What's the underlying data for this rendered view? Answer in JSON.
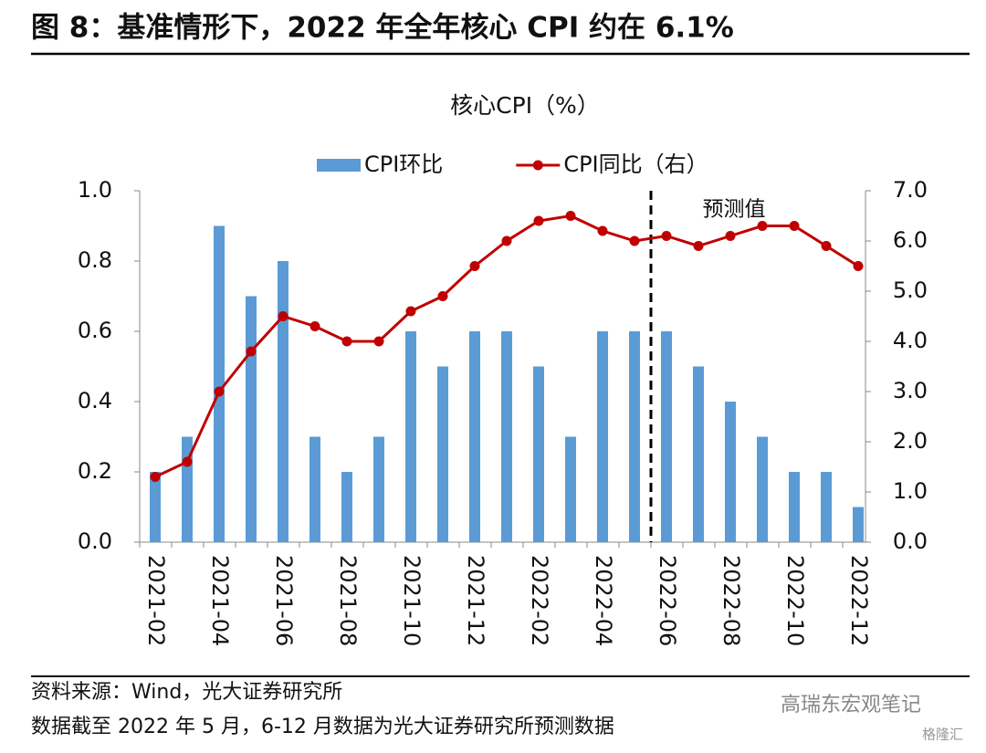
{
  "chart_data": {
    "type": "bar-line",
    "title": "图 8：基准情形下，2022 年全年核心 CPI 约在 6.1%",
    "subtitle": "核心CPI（%）",
    "annotation": "预测值",
    "categories": [
      "2021-02",
      null,
      "2021-04",
      null,
      "2021-06",
      null,
      "2021-08",
      null,
      "2021-10",
      null,
      "2021-12",
      null,
      "2022-02",
      null,
      "2022-04",
      null,
      "2022-06",
      null,
      "2022-08",
      null,
      "2022-10",
      null,
      "2022-12"
    ],
    "series": [
      {
        "name": "CPI环比",
        "type": "bar",
        "color": "#5b9bd5",
        "axis": "y",
        "values": [
          0.2,
          0.3,
          0.9,
          0.7,
          0.8,
          0.3,
          0.2,
          0.3,
          0.6,
          0.5,
          0.6,
          0.6,
          0.5,
          0.3,
          0.6,
          0.6,
          0.6,
          0.5,
          0.4,
          0.3,
          0.2,
          0.2,
          0.1
        ]
      },
      {
        "name": "CPI同比（右）",
        "type": "line",
        "color": "#c00000",
        "axis": "y2",
        "values": [
          1.3,
          1.6,
          3.0,
          3.8,
          4.5,
          4.3,
          4.0,
          4.0,
          4.6,
          4.9,
          5.5,
          6.0,
          6.4,
          6.5,
          6.2,
          6.0,
          6.1,
          5.9,
          6.1,
          6.3,
          6.3,
          5.9,
          5.5
        ]
      }
    ],
    "ylim": [
      0,
      1
    ],
    "yticks": [
      {
        "value": 0,
        "label": "0.0"
      },
      0.2,
      0.4,
      0.6,
      0.8,
      {
        "value": 1,
        "label": "1.0"
      }
    ],
    "y2lim": [
      0,
      7
    ],
    "y2ticks": [
      {
        "value": 0,
        "label": "0.0"
      },
      {
        "value": 1,
        "label": "1.0"
      },
      {
        "value": 2,
        "label": "2.0"
      },
      {
        "value": 3,
        "label": "3.0"
      },
      {
        "value": 4,
        "label": "4.0"
      },
      {
        "value": 5,
        "label": "5.0"
      },
      {
        "value": 6,
        "label": "6.0"
      },
      {
        "value": 7,
        "label": "7.0"
      }
    ],
    "legend": "top",
    "grid": false
  },
  "footer": {
    "source": "资料来源：Wind，光大证券研究所",
    "note": "数据截至 2022 年 5 月，6-12 月数据为光大证券研究所预测数据"
  },
  "watermark": {
    "account": "高瑞东宏观笔记",
    "site": "格隆汇"
  }
}
